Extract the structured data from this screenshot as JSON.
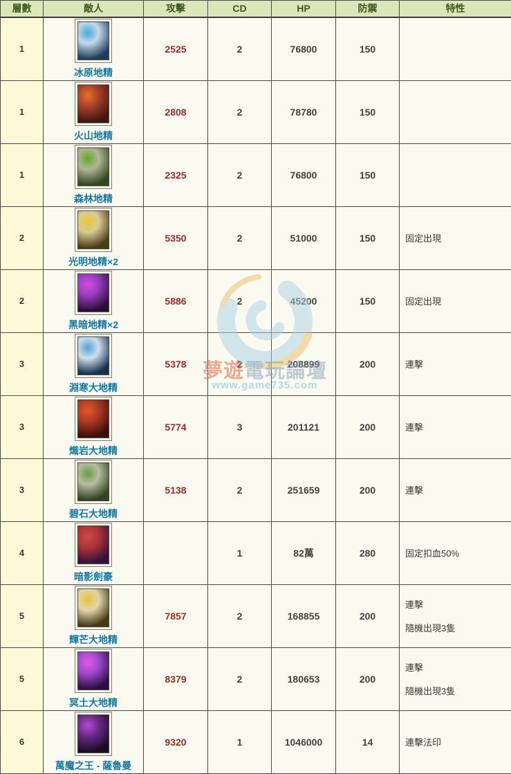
{
  "colors": {
    "header_bg": "#d9e7bb",
    "header_text": "#41581c",
    "floor_col_bg": "#fdf9d8",
    "cell_bg": "#fafaf0",
    "border": "#4b4b43",
    "attack_text": "#9e2b25",
    "number_text": "#46403a",
    "enemy_name_text": "#1478a2",
    "watermark_blue": "#a9d2e8",
    "watermark_orange": "#f2bc64"
  },
  "table": {
    "columns": [
      {
        "key": "floor",
        "label": "層數"
      },
      {
        "key": "enemy",
        "label": "敵人"
      },
      {
        "key": "atk",
        "label": "攻擊"
      },
      {
        "key": "cd",
        "label": "CD"
      },
      {
        "key": "hp",
        "label": "HP"
      },
      {
        "key": "def",
        "label": "防禦"
      },
      {
        "key": "trait",
        "label": "特性"
      }
    ],
    "rows": [
      {
        "floor": "1",
        "name": "冰原地精",
        "atk": "2525",
        "cd": "2",
        "hp": "76800",
        "def": "150",
        "traits": [],
        "icon": {
          "semantic": "ice-goblin-portrait",
          "bg": "#1e3d5c",
          "mid": "#c2d9ea",
          "accent": "#46a8e0"
        }
      },
      {
        "floor": "1",
        "name": "火山地精",
        "atk": "2808",
        "cd": "2",
        "hp": "78780",
        "def": "150",
        "traits": [],
        "icon": {
          "semantic": "volcano-goblin-portrait",
          "bg": "#43160e",
          "mid": "#a8422a",
          "accent": "#e8702c"
        }
      },
      {
        "floor": "1",
        "name": "森林地精",
        "atk": "2325",
        "cd": "2",
        "hp": "76800",
        "def": "150",
        "traits": [],
        "icon": {
          "semantic": "forest-goblin-portrait",
          "bg": "#2f4a22",
          "mid": "#b5b594",
          "accent": "#5da832"
        }
      },
      {
        "floor": "2",
        "name": "光明地精×2",
        "atk": "5350",
        "cd": "2",
        "hp": "51000",
        "def": "150",
        "traits": [
          "固定出現"
        ],
        "icon": {
          "semantic": "light-goblin-portrait",
          "bg": "#4a3c14",
          "mid": "#d8cb96",
          "accent": "#e8c832"
        }
      },
      {
        "floor": "2",
        "name": "黑暗地精×2",
        "atk": "5886",
        "cd": "2",
        "hp": "45200",
        "def": "150",
        "traits": [
          "固定出現"
        ],
        "icon": {
          "semantic": "dark-goblin-portrait",
          "bg": "#2a0e38",
          "mid": "#9a3ec0",
          "accent": "#d44ae0"
        }
      },
      {
        "floor": "3",
        "name": "淵寒大地精",
        "atk": "5378",
        "cd": "2",
        "hp": "208899",
        "def": "200",
        "traits": [
          "連擊"
        ],
        "icon": {
          "semantic": "abyss-frost-goblin-portrait",
          "bg": "#16304e",
          "mid": "#cfdfeb",
          "accent": "#52a0dc"
        }
      },
      {
        "floor": "3",
        "name": "熾岩大地精",
        "atk": "5774",
        "cd": "3",
        "hp": "201121",
        "def": "200",
        "traits": [
          "連擊"
        ],
        "icon": {
          "semantic": "blazing-rock-goblin-portrait",
          "bg": "#3c0f0a",
          "mid": "#b03a24",
          "accent": "#e05a28"
        }
      },
      {
        "floor": "3",
        "name": "碧石大地精",
        "atk": "5138",
        "cd": "2",
        "hp": "251659",
        "def": "200",
        "traits": [
          "連擊"
        ],
        "icon": {
          "semantic": "jade-stone-goblin-portrait",
          "bg": "#32441f",
          "mid": "#b8bca4",
          "accent": "#62a040"
        }
      },
      {
        "floor": "4",
        "name": "暗影劍豪",
        "atk": "",
        "cd": "1",
        "hp": "82萬",
        "def": "280",
        "traits": [
          "固定扣血50%"
        ],
        "icon": {
          "semantic": "shadow-swordsman-portrait",
          "bg": "#34123f",
          "mid": "#b03434",
          "accent": "#d04848"
        }
      },
      {
        "floor": "5",
        "name": "輝芒大地精",
        "atk": "7857",
        "cd": "2",
        "hp": "168855",
        "def": "200",
        "traits": [
          "連擊",
          "隨機出現3隻"
        ],
        "icon": {
          "semantic": "radiant-goblin-portrait",
          "bg": "#463a12",
          "mid": "#e0d6ac",
          "accent": "#e8c23c"
        }
      },
      {
        "floor": "5",
        "name": "冥土大地精",
        "atk": "8379",
        "cd": "2",
        "hp": "180653",
        "def": "200",
        "traits": [
          "連擊",
          "隨機出現3隻"
        ],
        "icon": {
          "semantic": "netherworld-goblin-portrait",
          "bg": "#2a1040",
          "mid": "#a04ad0",
          "accent": "#e058e8"
        }
      },
      {
        "floor": "6",
        "name": "萬魔之王 - 薩魯曼",
        "atk": "9320",
        "cd": "1",
        "hp": "1046000",
        "def": "14",
        "traits": [
          "連擊法印"
        ],
        "icon": {
          "semantic": "demon-king-saruman-portrait",
          "bg": "#1c0b26",
          "mid": "#6a2a88",
          "accent": "#b04ad8"
        }
      }
    ]
  },
  "watermark": {
    "title_part_red": "夢遊",
    "title_part_gray": "電玩論壇",
    "url": "www.game735.com"
  }
}
